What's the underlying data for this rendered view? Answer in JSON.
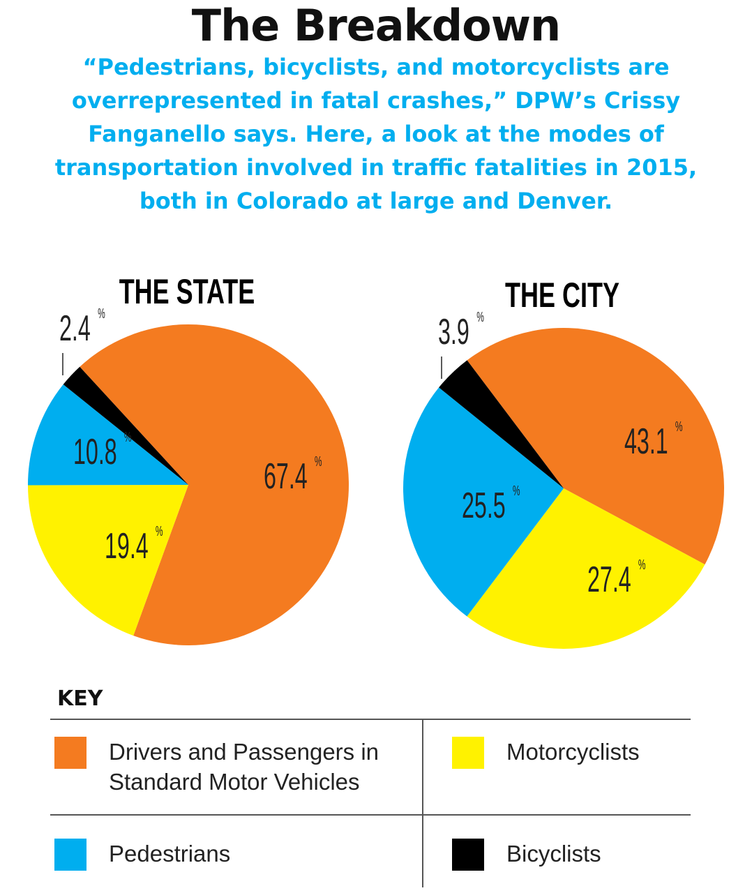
{
  "title": "The Breakdown",
  "subtitle": "“Pedestrians, bicyclists, and motorcyclists are overrepresented in fatal crashes,” DPW’s Crissy Fanganello says. Here, a look at the modes of transportation involved in traffic fatalities in 2015, both in Colorado at large and Denver.",
  "colors": {
    "drivers": "#F47B20",
    "motorcyclists": "#FFF200",
    "pedestrians": "#00AEEF",
    "bicyclists": "#000000"
  },
  "chart_data": [
    {
      "type": "pie",
      "title": "THE STATE",
      "categories": [
        "Drivers and Passengers in Standard Motor Vehicles",
        "Motorcyclists",
        "Pedestrians",
        "Bicyclists"
      ],
      "values": [
        67.4,
        19.4,
        10.8,
        2.4
      ],
      "labels": [
        "67.4",
        "19.4",
        "10.8",
        "2.4"
      ],
      "unit": "%"
    },
    {
      "type": "pie",
      "title": "THE CITY",
      "categories": [
        "Drivers and Passengers in Standard Motor Vehicles",
        "Motorcyclists",
        "Pedestrians",
        "Bicyclists"
      ],
      "values": [
        43.1,
        27.4,
        25.5,
        3.9
      ],
      "labels": [
        "43.1",
        "27.4",
        "25.5",
        "3.9"
      ],
      "unit": "%"
    }
  ],
  "key": {
    "title": "KEY",
    "items": [
      {
        "label": "Drivers and Passengers in Standard Motor Vehicles",
        "color": "#F47B20"
      },
      {
        "label": "Motorcyclists",
        "color": "#FFF200"
      },
      {
        "label": "Pedestrians",
        "color": "#00AEEF"
      },
      {
        "label": "Bicyclists",
        "color": "#000000"
      }
    ]
  }
}
